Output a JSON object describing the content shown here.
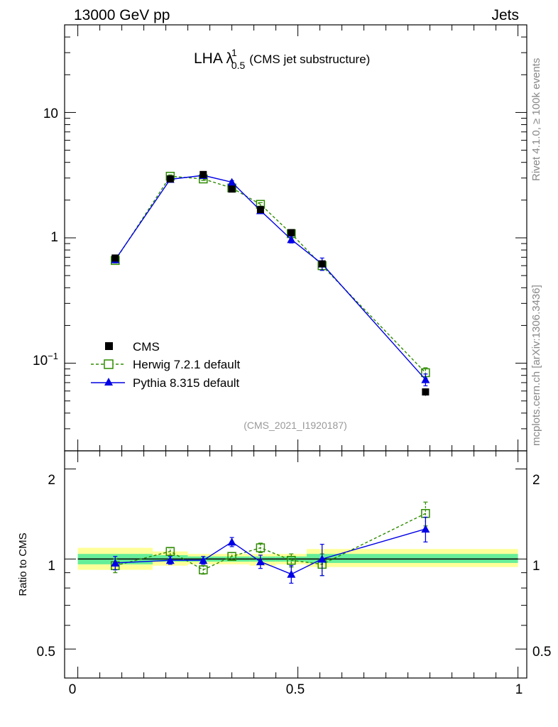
{
  "header": {
    "left": "13000 GeV pp",
    "right": "Jets"
  },
  "side_labels": {
    "rivet": "Rivet 4.1.0, ≥ 100k events",
    "mcplots": "mcplots.cern.ch [arXiv:1306.3436]"
  },
  "colors": {
    "cms": "#000000",
    "herwig": "#2e8b00",
    "pythia": "#0000e6",
    "band_yellow": "#ffff99",
    "band_green": "#66ee99"
  },
  "chart_data": [
    {
      "type": "line",
      "title": "LHA λ",
      "title_sup": "1",
      "title_sub": "0.5",
      "subtitle": "(CMS jet substructure)",
      "watermark": "(CMS_2021_I1920187)",
      "yscale": "log",
      "ylim": [
        0.02,
        50
      ],
      "xlim": [
        -0.03,
        1.02
      ],
      "y_tick_labels": [
        "10",
        "1",
        "10−1"
      ],
      "y_tick_values": [
        10,
        1,
        0.1
      ],
      "legend_position": "middle-left",
      "series": [
        {
          "name": "CMS",
          "x": [
            0.085,
            0.21,
            0.285,
            0.35,
            0.415,
            0.485,
            0.555,
            0.79
          ],
          "y": [
            0.69,
            2.95,
            3.2,
            2.45,
            1.68,
            1.1,
            0.62,
            0.059
          ],
          "err": [
            0.03,
            0.09,
            0.09,
            0.07,
            0.05,
            0.05,
            0.03,
            0.004
          ]
        },
        {
          "name": "Herwig 7.2.1 default",
          "x": [
            0.085,
            0.21,
            0.285,
            0.35,
            0.415,
            0.485,
            0.555,
            0.79
          ],
          "y": [
            0.66,
            3.1,
            2.95,
            2.5,
            1.85,
            1.08,
            0.6,
            0.084
          ],
          "err": [
            0.03,
            0.08,
            0.08,
            0.07,
            0.06,
            0.05,
            0.05,
            0.008
          ]
        },
        {
          "name": "Pythia 8.315 default",
          "x": [
            0.085,
            0.21,
            0.285,
            0.35,
            0.415,
            0.485,
            0.555,
            0.79
          ],
          "y": [
            0.67,
            2.93,
            3.15,
            2.78,
            1.65,
            0.97,
            0.62,
            0.074
          ],
          "err": [
            0.03,
            0.08,
            0.08,
            0.08,
            0.06,
            0.06,
            0.07,
            0.008
          ]
        }
      ]
    },
    {
      "type": "line",
      "ylabel": "Ratio to CMS",
      "yscale": "log",
      "ylim": [
        0.4,
        2.3
      ],
      "xlim": [
        -0.03,
        1.02
      ],
      "y_tick_labels": [
        "2",
        "1",
        "0.5"
      ],
      "y_tick_values": [
        2,
        1,
        0.5
      ],
      "x_tick_labels": [
        "0",
        "0.5",
        "1"
      ],
      "x_tick_values": [
        0,
        0.5,
        1
      ],
      "bands": [
        {
          "x0": 0.0,
          "x1": 0.17,
          "yellow": [
            0.92,
            1.09
          ],
          "green": [
            0.96,
            1.04
          ]
        },
        {
          "x0": 0.17,
          "x1": 0.25,
          "yellow": [
            0.95,
            1.06
          ],
          "green": [
            0.98,
            1.03
          ]
        },
        {
          "x0": 0.25,
          "x1": 0.32,
          "yellow": [
            0.96,
            1.04
          ],
          "green": [
            0.98,
            1.02
          ]
        },
        {
          "x0": 0.32,
          "x1": 0.39,
          "yellow": [
            0.96,
            1.04
          ],
          "green": [
            0.98,
            1.02
          ]
        },
        {
          "x0": 0.39,
          "x1": 0.45,
          "yellow": [
            0.95,
            1.04
          ],
          "green": [
            0.98,
            1.02
          ]
        },
        {
          "x0": 0.45,
          "x1": 0.52,
          "yellow": [
            0.96,
            1.04
          ],
          "green": [
            0.98,
            1.02
          ]
        },
        {
          "x0": 0.52,
          "x1": 1.0,
          "yellow": [
            0.94,
            1.08
          ],
          "green": [
            0.97,
            1.04
          ]
        }
      ],
      "series": [
        {
          "name": "Herwig 7.2.1 default",
          "x": [
            0.085,
            0.21,
            0.285,
            0.35,
            0.415,
            0.485,
            0.555,
            0.79
          ],
          "y": [
            0.95,
            1.06,
            0.92,
            1.02,
            1.09,
            0.99,
            0.96,
            1.42
          ],
          "err": [
            0.05,
            0.03,
            0.03,
            0.03,
            0.04,
            0.05,
            0.08,
            0.13
          ]
        },
        {
          "name": "Pythia 8.315 default",
          "x": [
            0.085,
            0.21,
            0.285,
            0.35,
            0.415,
            0.485,
            0.555,
            0.79
          ],
          "y": [
            0.97,
            0.99,
            0.99,
            1.14,
            0.98,
            0.89,
            1.0,
            1.26
          ],
          "err": [
            0.05,
            0.03,
            0.03,
            0.04,
            0.05,
            0.06,
            0.12,
            0.12
          ]
        }
      ]
    }
  ]
}
